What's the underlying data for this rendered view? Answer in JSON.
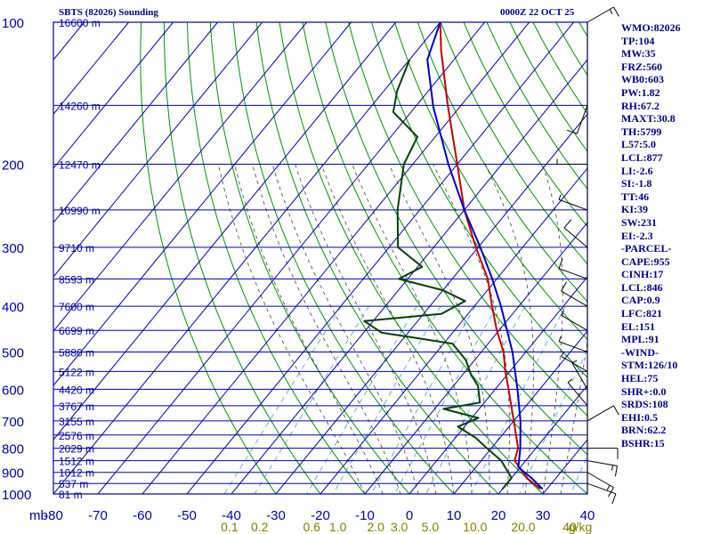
{
  "header": {
    "station": "SBTS (82026) Sounding",
    "time": "0000Z 22 OCT 25"
  },
  "indices": [
    "WMO:82026",
    "TP:104",
    "MW:35",
    "FRZ:560",
    "WB0:603",
    "PW:1.82",
    "RH:67.2",
    "MAXT:30.8",
    "TH:5799",
    "L57:5.0",
    "LCL:877",
    "LI:-2.6",
    "SI:-1.8",
    "TT:46",
    "KI:39",
    "SW:231",
    "EI:-2.3",
    "-PARCEL-",
    "CAPE:955",
    "CINH:17",
    "LCL:846",
    "CAP:0.9",
    "LFC:821",
    "EL:151",
    "MPL:91",
    "-WIND-",
    "STM:126/10",
    "HEL:75",
    "SHR+:0.0",
    "SRDS:108",
    "EHI:0.5",
    "BRN:62.2",
    "BSHR:15"
  ],
  "colors": {
    "grid": "#0000a0",
    "dry_adiabat": "#009000",
    "moist_adiabat": "#404040",
    "mixing_ratio": "#40a0d0",
    "temperature": "#c00000",
    "dewpoint": "#004000",
    "parcel": "#0000c0",
    "wind_barb": "#000000",
    "mixing_label": "#808000"
  },
  "chart_data": {
    "type": "line",
    "title": "SBTS (82026) Sounding",
    "yunit": "mb",
    "pressure_ticks": [
      100,
      200,
      300,
      400,
      500,
      600,
      700,
      800,
      900,
      1000
    ],
    "pressure_tick_labels": [
      "100",
      "200",
      "300",
      "400",
      "500",
      "600",
      "700",
      "800",
      "900",
      "1000"
    ],
    "y_scale": "log",
    "ylim": [
      1000,
      100
    ],
    "temperature_ticks": [
      -80,
      -70,
      -60,
      -50,
      -40,
      -30,
      -20,
      -10,
      0,
      10,
      20,
      30,
      40
    ],
    "temperature_tick_labels": [
      "-80",
      "-70",
      "-60",
      "-50",
      "-40",
      "-30",
      "-20",
      "-10",
      "0",
      "10",
      "20",
      "30",
      "40"
    ],
    "xlim": [
      -80,
      40
    ],
    "height_levels": [
      {
        "p": 100,
        "label": "16600 m"
      },
      {
        "p": 150,
        "label": "14260 m"
      },
      {
        "p": 200,
        "label": "12470 m"
      },
      {
        "p": 250,
        "label": "10990 m"
      },
      {
        "p": 300,
        "label": "9710 m"
      },
      {
        "p": 350,
        "label": "8593 m"
      },
      {
        "p": 400,
        "label": "7600 m"
      },
      {
        "p": 450,
        "label": "6699 m"
      },
      {
        "p": 500,
        "label": "5880 m"
      },
      {
        "p": 550,
        "label": "5122 m"
      },
      {
        "p": 600,
        "label": "4420 m"
      },
      {
        "p": 650,
        "label": "3767 m"
      },
      {
        "p": 700,
        "label": "3155 m"
      },
      {
        "p": 750,
        "label": "2576 m"
      },
      {
        "p": 800,
        "label": "2029 m"
      },
      {
        "p": 850,
        "label": "1512 m"
      },
      {
        "p": 900,
        "label": "1012 m"
      },
      {
        "p": 950,
        "label": "537 m"
      },
      {
        "p": 1000,
        "label": "81 m"
      }
    ],
    "mixing_ratio_labels": [
      {
        "w": 0.1,
        "label": "0.1"
      },
      {
        "w": 0.2,
        "label": "0.2"
      },
      {
        "w": 0.6,
        "label": "0.6"
      },
      {
        "w": 1.0,
        "label": "1.0"
      },
      {
        "w": 2.0,
        "label": "2.0"
      },
      {
        "w": 3.0,
        "label": "3.0"
      },
      {
        "w": 5.0,
        "label": "5.0"
      },
      {
        "w": 10.0,
        "label": "10.0"
      },
      {
        "w": 20.0,
        "label": "20.0"
      },
      {
        "w": 40.0,
        "label": "40"
      }
    ],
    "mixing_ratio_unit": "g/kg",
    "series": [
      {
        "key": "temperature",
        "points": [
          {
            "p": 976,
            "t": 28.5
          },
          {
            "p": 925,
            "t": 23.5
          },
          {
            "p": 850,
            "t": 17.5
          },
          {
            "p": 800,
            "t": 16.0
          },
          {
            "p": 700,
            "t": 10.0
          },
          {
            "p": 600,
            "t": 3.0
          },
          {
            "p": 550,
            "t": -1.0
          },
          {
            "p": 500,
            "t": -5.0
          },
          {
            "p": 450,
            "t": -10.5
          },
          {
            "p": 400,
            "t": -16.0
          },
          {
            "p": 350,
            "t": -22.0
          },
          {
            "p": 300,
            "t": -30.5
          },
          {
            "p": 250,
            "t": -40.0
          },
          {
            "p": 200,
            "t": -50.0
          },
          {
            "p": 150,
            "t": -63.0
          },
          {
            "p": 115,
            "t": -74.5
          },
          {
            "p": 100,
            "t": -80.0
          }
        ]
      },
      {
        "key": "dewpoint",
        "points": [
          {
            "p": 976,
            "t": 20.0
          },
          {
            "p": 925,
            "t": 20.0
          },
          {
            "p": 850,
            "t": 14.5
          },
          {
            "p": 800,
            "t": 9.0
          },
          {
            "p": 760,
            "t": 4.5
          },
          {
            "p": 720,
            "t": -1.5
          },
          {
            "p": 690,
            "t": 1.5
          },
          {
            "p": 660,
            "t": -8.0
          },
          {
            "p": 640,
            "t": -1.0
          },
          {
            "p": 590,
            "t": -4.5
          },
          {
            "p": 560,
            "t": -8.0
          },
          {
            "p": 520,
            "t": -12.0
          },
          {
            "p": 480,
            "t": -18.0
          },
          {
            "p": 455,
            "t": -36.0
          },
          {
            "p": 430,
            "t": -42.0
          },
          {
            "p": 415,
            "t": -26.0
          },
          {
            "p": 390,
            "t": -23.0
          },
          {
            "p": 370,
            "t": -30.0
          },
          {
            "p": 350,
            "t": -42.0
          },
          {
            "p": 330,
            "t": -39.0
          },
          {
            "p": 300,
            "t": -48.0
          },
          {
            "p": 250,
            "t": -55.0
          },
          {
            "p": 200,
            "t": -62.0
          },
          {
            "p": 175,
            "t": -64.0
          },
          {
            "p": 155,
            "t": -74.0
          },
          {
            "p": 140,
            "t": -77.0
          },
          {
            "p": 120,
            "t": -80.0
          }
        ]
      },
      {
        "key": "parcel",
        "points": [
          {
            "p": 976,
            "t": 29.0
          },
          {
            "p": 925,
            "t": 24.5
          },
          {
            "p": 877,
            "t": 19.5
          },
          {
            "p": 850,
            "t": 18.5
          },
          {
            "p": 800,
            "t": 16.5
          },
          {
            "p": 700,
            "t": 11.5
          },
          {
            "p": 600,
            "t": 5.0
          },
          {
            "p": 500,
            "t": -3.0
          },
          {
            "p": 400,
            "t": -14.0
          },
          {
            "p": 350,
            "t": -21.0
          },
          {
            "p": 300,
            "t": -29.5
          },
          {
            "p": 250,
            "t": -40.0
          },
          {
            "p": 200,
            "t": -52.0
          },
          {
            "p": 151,
            "t": -66.0
          },
          {
            "p": 120,
            "t": -76.0
          },
          {
            "p": 100,
            "t": -80.0
          }
        ]
      }
    ],
    "wind_barbs": [
      {
        "p": 950,
        "dir": 110,
        "spd": 10
      },
      {
        "p": 900,
        "dir": 120,
        "spd": 15
      },
      {
        "p": 850,
        "dir": 100,
        "spd": 15
      },
      {
        "p": 800,
        "dir": 90,
        "spd": 10
      },
      {
        "p": 700,
        "dir": 60,
        "spd": 10
      },
      {
        "p": 650,
        "dir": 320,
        "spd": 5
      },
      {
        "p": 600,
        "dir": 330,
        "spd": 5
      },
      {
        "p": 550,
        "dir": 300,
        "spd": 5
      },
      {
        "p": 500,
        "dir": 290,
        "spd": 5
      },
      {
        "p": 450,
        "dir": 300,
        "spd": 5
      },
      {
        "p": 400,
        "dir": 300,
        "spd": 10
      },
      {
        "p": 350,
        "dir": 290,
        "spd": 10
      },
      {
        "p": 300,
        "dir": 310,
        "spd": 10
      },
      {
        "p": 250,
        "dir": 290,
        "spd": 5
      },
      {
        "p": 200,
        "dir": 270,
        "spd": 5
      },
      {
        "p": 150,
        "dir": 200,
        "spd": 10
      },
      {
        "p": 100,
        "dir": 60,
        "spd": 15
      }
    ]
  }
}
